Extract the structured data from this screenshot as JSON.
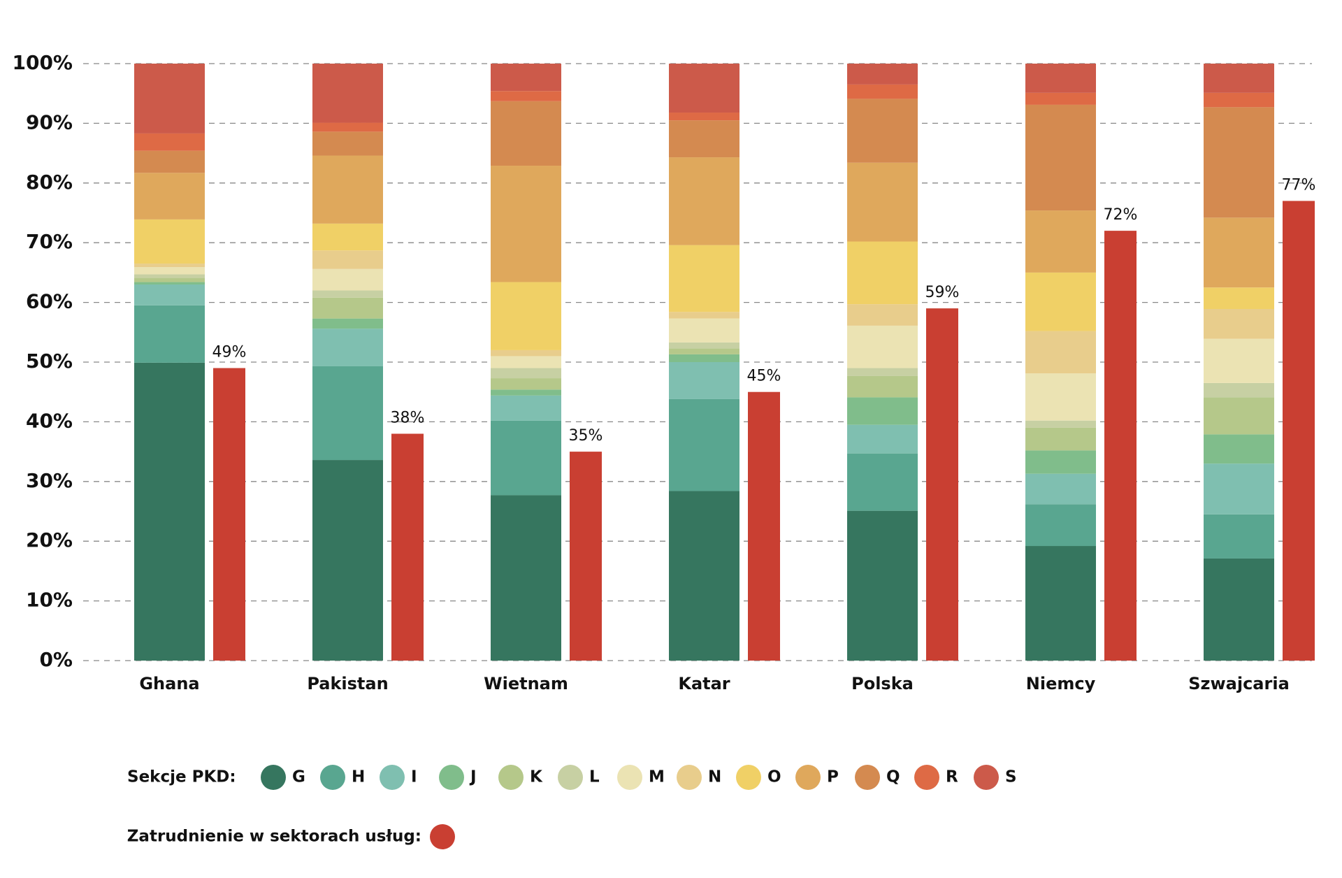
{
  "chart_data": {
    "type": "stacked_bar",
    "categories": [
      "Ghana",
      "Pakistan",
      "Wietnam",
      "Katar",
      "Polska",
      "Niemcy",
      "Szwajcaria"
    ],
    "ylim": [
      0,
      100
    ],
    "yticks": [
      {
        "value": 0,
        "label": "0%"
      },
      {
        "value": 10,
        "label": "10%"
      },
      {
        "value": 20,
        "label": "20%"
      },
      {
        "value": 30,
        "label": "30%"
      },
      {
        "value": 40,
        "label": "40%"
      },
      {
        "value": 50,
        "label": "50%"
      },
      {
        "value": 60,
        "label": "60%"
      },
      {
        "value": 70,
        "label": "70%"
      },
      {
        "value": 80,
        "label": "80%"
      },
      {
        "value": 90,
        "label": "90%"
      },
      {
        "value": 100,
        "label": "100%"
      }
    ],
    "grid": true,
    "legend_title": "Sekcje PKD:",
    "series": [
      {
        "name": "G",
        "color": "#36765f",
        "values": [
          49.9,
          33.6,
          27.7,
          28.4,
          25.1,
          19.2,
          17.1
        ]
      },
      {
        "name": "H",
        "color": "#59a690",
        "values": [
          9.6,
          15.7,
          12.5,
          15.4,
          9.6,
          7.0,
          7.4
        ]
      },
      {
        "name": "I",
        "color": "#7fbfb0",
        "values": [
          3.5,
          6.3,
          4.2,
          6.2,
          4.8,
          5.1,
          8.5
        ]
      },
      {
        "name": "J",
        "color": "#80bd8b",
        "values": [
          0.4,
          1.7,
          1.0,
          1.3,
          4.6,
          3.9,
          4.9
        ]
      },
      {
        "name": "K",
        "color": "#b5c88a",
        "values": [
          0.7,
          3.5,
          1.9,
          1.0,
          3.6,
          3.8,
          6.2
        ]
      },
      {
        "name": "L",
        "color": "#c7d0a3",
        "values": [
          0.6,
          1.2,
          1.7,
          1.0,
          1.3,
          1.2,
          2.4
        ]
      },
      {
        "name": "M",
        "color": "#ebe3b3",
        "values": [
          1.2,
          3.6,
          2.0,
          4.0,
          7.1,
          7.9,
          7.4
        ]
      },
      {
        "name": "N",
        "color": "#e8cd8c",
        "values": [
          0.6,
          3.1,
          1.0,
          1.1,
          3.6,
          7.1,
          5.0
        ]
      },
      {
        "name": "O",
        "color": "#f0d066",
        "values": [
          7.4,
          4.5,
          11.4,
          11.2,
          10.5,
          9.8,
          3.6
        ]
      },
      {
        "name": "P",
        "color": "#dfa85c",
        "values": [
          7.8,
          11.4,
          19.5,
          14.7,
          13.2,
          10.4,
          11.7
        ]
      },
      {
        "name": "Q",
        "color": "#d48a50",
        "values": [
          3.7,
          4.0,
          10.8,
          6.2,
          10.7,
          17.7,
          18.5
        ]
      },
      {
        "name": "R",
        "color": "#de6a45",
        "values": [
          2.9,
          1.5,
          1.7,
          1.3,
          2.4,
          2.0,
          2.4
        ]
      },
      {
        "name": "S",
        "color": "#cc5a4a",
        "values": [
          11.7,
          9.9,
          4.6,
          8.2,
          3.5,
          4.9,
          4.9
        ]
      }
    ],
    "services": {
      "name": "Zatrudnienie w sektorach usług:",
      "color": "#c93f32",
      "values": [
        49,
        38,
        35,
        45,
        59,
        72,
        77
      ],
      "value_labels": [
        "49%",
        "38%",
        "35%",
        "45%",
        "59%",
        "72%",
        "77%"
      ]
    }
  }
}
